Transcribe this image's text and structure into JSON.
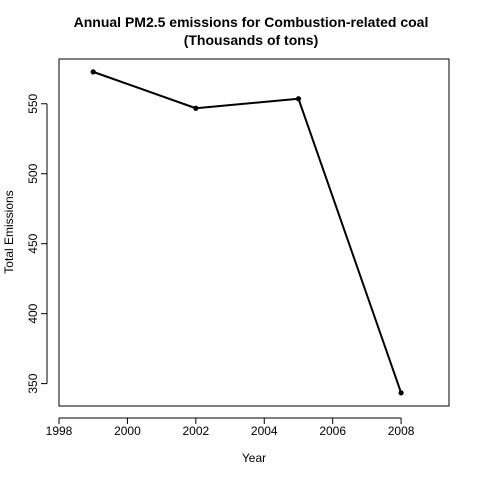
{
  "chart_data": {
    "type": "line",
    "title": "Annual PM2.5 emissions for Combustion-related coal",
    "subtitle": "(Thousands of tons)",
    "xlabel": "Year",
    "ylabel": "Total Emissions",
    "x": [
      1999,
      2002,
      2005,
      2008
    ],
    "y": [
      572.8,
      546.8,
      553.6,
      343.4
    ],
    "xlim": [
      1998,
      2009.4
    ],
    "ylim": [
      334,
      582
    ],
    "xticks": [
      1998,
      2000,
      2002,
      2004,
      2006,
      2008
    ],
    "yticks": [
      350,
      400,
      450,
      500,
      550
    ],
    "xtick_labels": [
      "1998",
      "2000",
      "2002",
      "2004",
      "2006",
      "2008"
    ],
    "ytick_labels": [
      "350",
      "400",
      "450",
      "500",
      "550"
    ],
    "grid": false,
    "line_color": "#000000",
    "marker": "filled-circle"
  }
}
